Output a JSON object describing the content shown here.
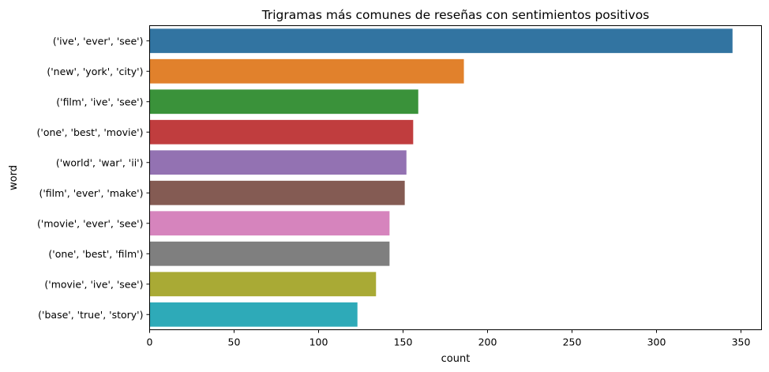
{
  "chart_data": {
    "type": "bar",
    "orientation": "horizontal",
    "title": "Trigramas más comunes de reseñas con sentimientos positivos",
    "xlabel": "count",
    "ylabel": "word",
    "xlim": [
      0,
      362
    ],
    "xticks": [
      0,
      50,
      100,
      150,
      200,
      250,
      300,
      350
    ],
    "grid": false,
    "categories": [
      "('ive', 'ever', 'see')",
      "('new', 'york', 'city')",
      "('film', 'ive', 'see')",
      "('one', 'best', 'movie')",
      "('world', 'war', 'ii')",
      "('film', 'ever', 'make')",
      "('movie', 'ever', 'see')",
      "('one', 'best', 'film')",
      "('movie', 'ive', 'see')",
      "('base', 'true', 'story')"
    ],
    "values": [
      345,
      186,
      159,
      156,
      152,
      151,
      142,
      142,
      134,
      123
    ],
    "colors": [
      "#3274a1",
      "#e1812c",
      "#3a923a",
      "#c03d3e",
      "#9372b2",
      "#845b53",
      "#d684bd",
      "#7f7f7f",
      "#a9aa35",
      "#2eaab8"
    ]
  }
}
